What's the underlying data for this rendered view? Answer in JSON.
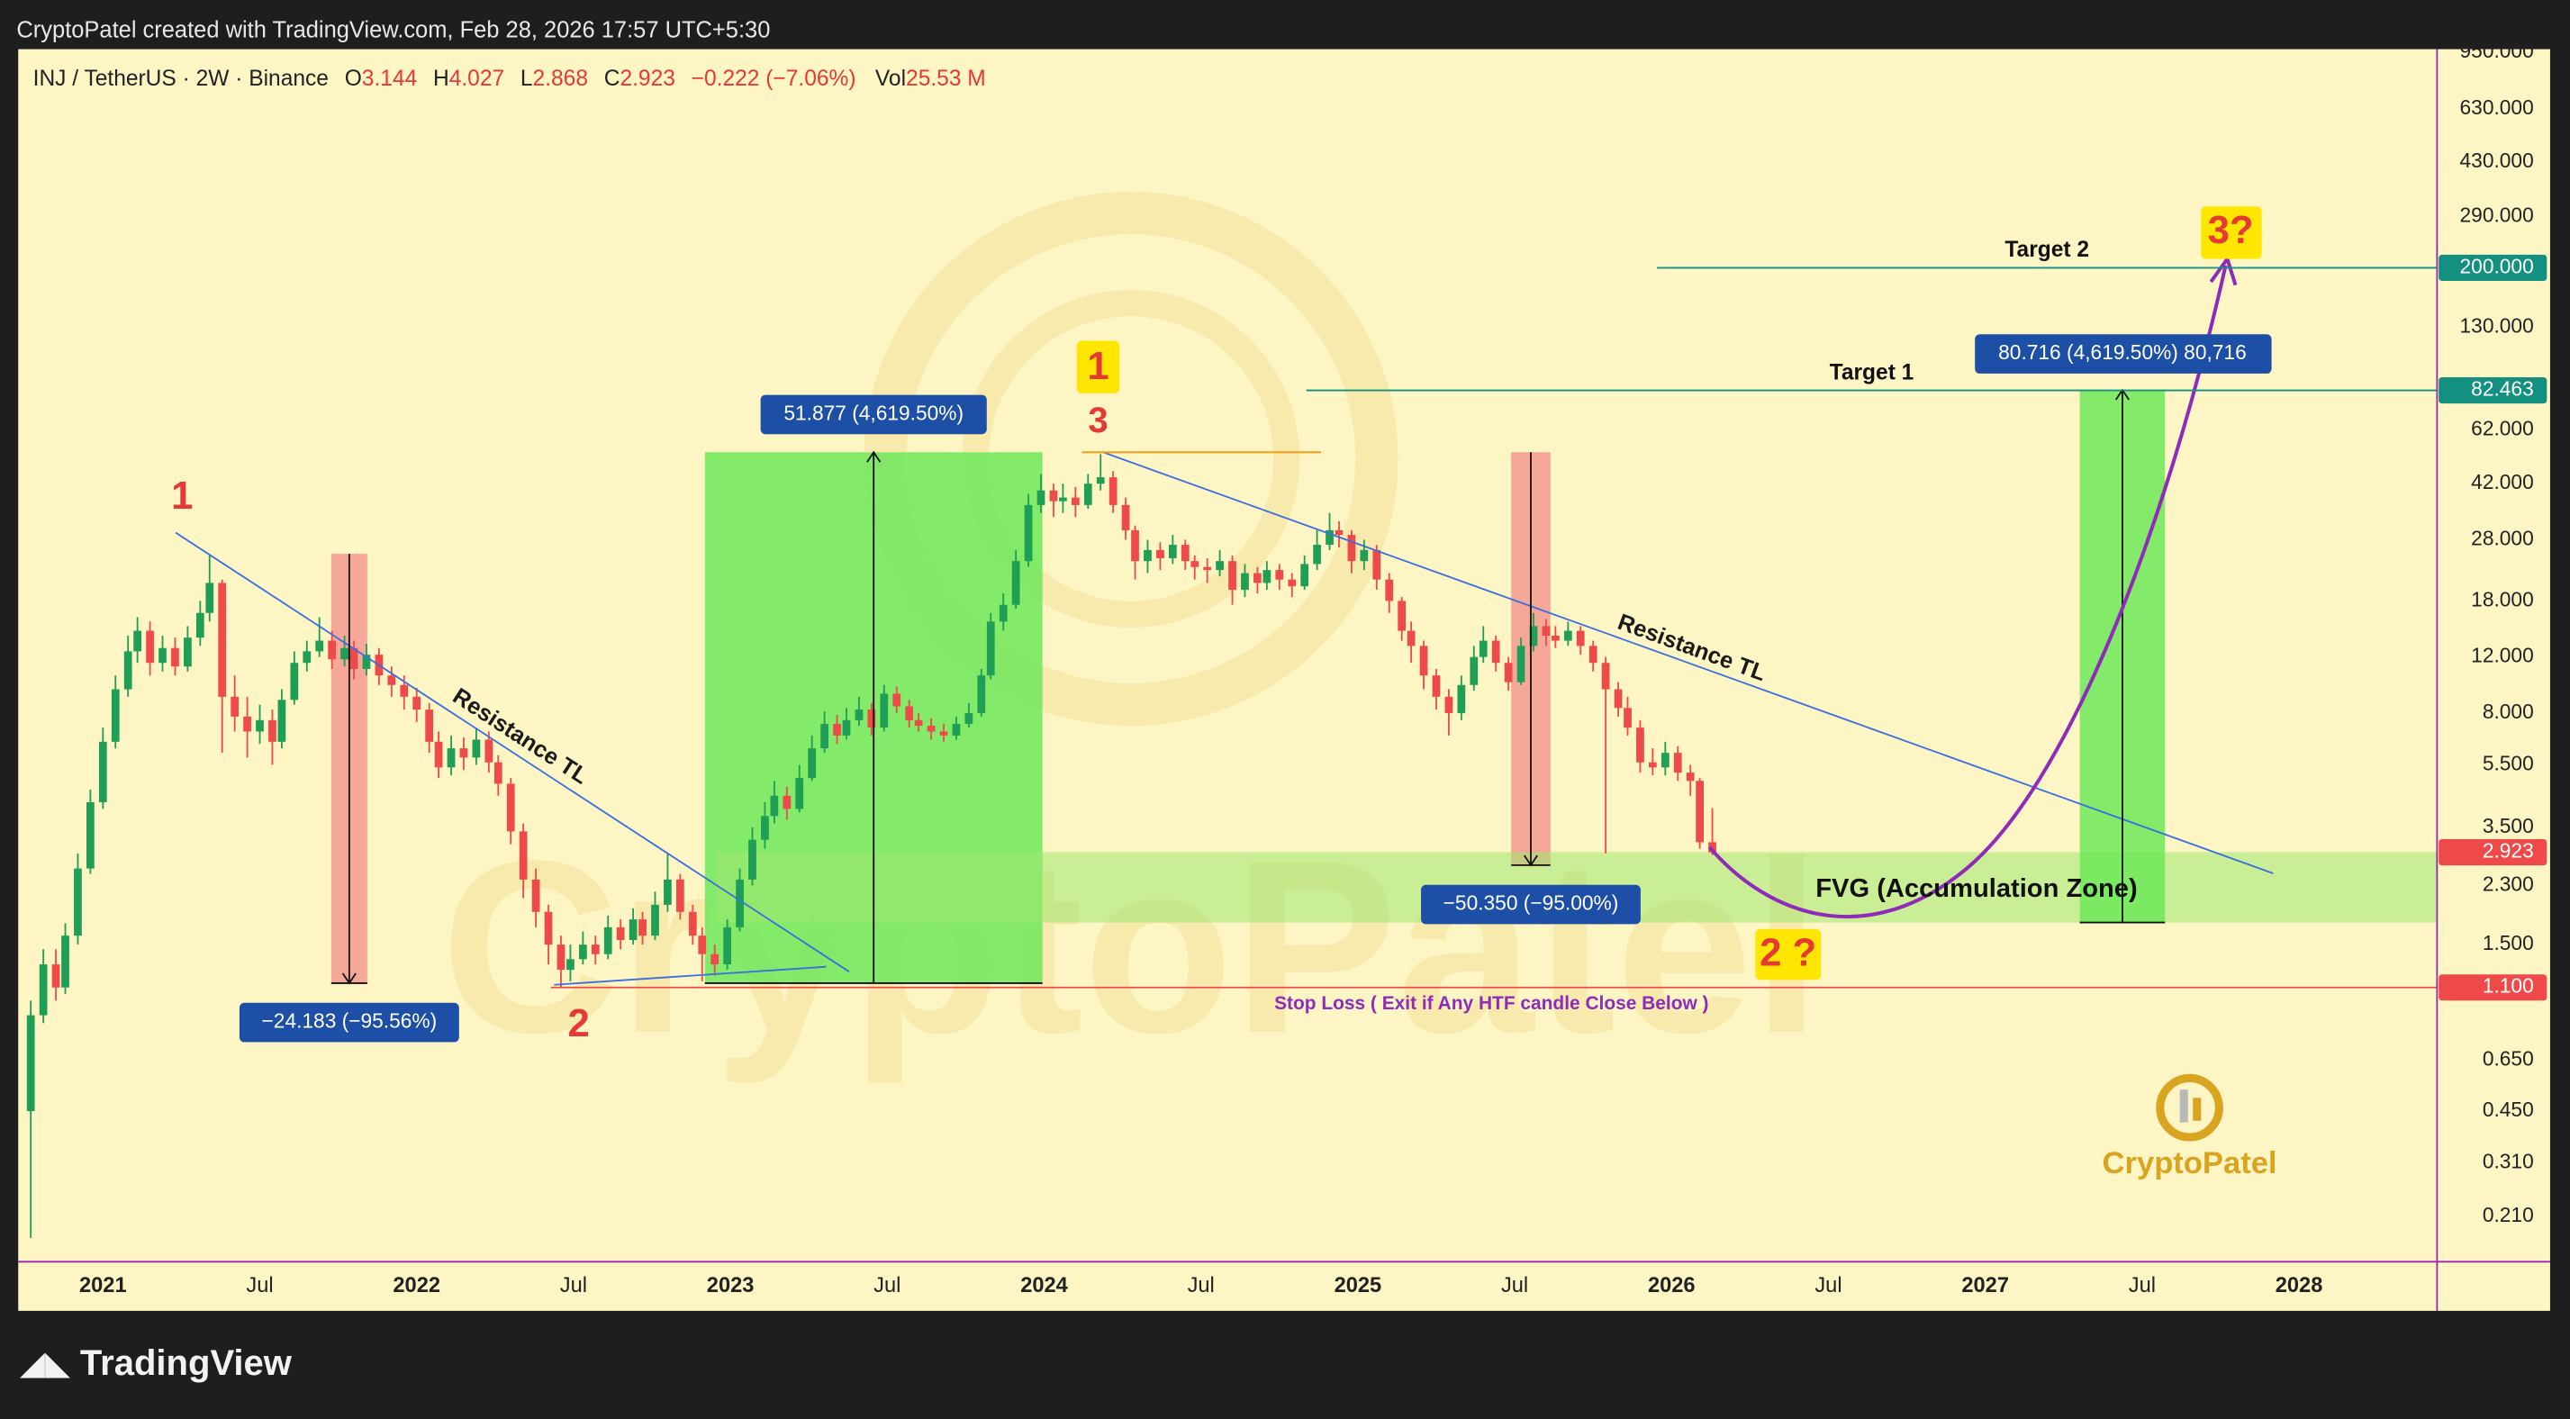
{
  "header": {
    "source": "CryptoPatel created with TradingView.com, Feb 28, 2026 17:57 UTC+5:30",
    "symbol": "INJ / TetherUS · 2W · Binance",
    "ohlc_labels": [
      "O",
      "H",
      "L",
      "C"
    ],
    "change": "−0.222 (−7.06%)",
    "volume_label": "Vol",
    "volume": "25.53 M"
  },
  "footer": {
    "brand": "TradingView",
    "logo_text": "CryptoPatel"
  },
  "chart_data": {
    "type": "candlestick",
    "log_scale": true,
    "up_color": "#1f9e55",
    "down_color": "#ef4a4a",
    "xlim": [
      2020.73,
      2028.44
    ],
    "ylim": [
      0.1515,
      972
    ],
    "xticks": [
      {
        "value": 2021,
        "label": "2021"
      },
      {
        "value": 2021.5,
        "label": "Jul"
      },
      {
        "value": 2022,
        "label": "2022"
      },
      {
        "value": 2022.5,
        "label": "Jul"
      },
      {
        "value": 2023,
        "label": "2023"
      },
      {
        "value": 2023.5,
        "label": "Jul"
      },
      {
        "value": 2024,
        "label": "2024"
      },
      {
        "value": 2024.5,
        "label": "Jul"
      },
      {
        "value": 2025,
        "label": "2025"
      },
      {
        "value": 2025.5,
        "label": "Jul"
      },
      {
        "value": 2026,
        "label": "2026"
      },
      {
        "value": 2026.5,
        "label": "Jul"
      },
      {
        "value": 2027,
        "label": "2027"
      },
      {
        "value": 2027.5,
        "label": "Jul"
      },
      {
        "value": 2028,
        "label": "2028"
      }
    ],
    "yticks": [
      {
        "value": 950,
        "label": "950.000"
      },
      {
        "value": 630,
        "label": "630.000"
      },
      {
        "value": 430,
        "label": "430.000"
      },
      {
        "value": 290,
        "label": "290.000"
      },
      {
        "value": 130,
        "label": "130.000"
      },
      {
        "value": 62,
        "label": "62.000"
      },
      {
        "value": 42,
        "label": "42.000"
      },
      {
        "value": 28,
        "label": "28.000"
      },
      {
        "value": 18,
        "label": "18.000"
      },
      {
        "value": 12,
        "label": "12.000"
      },
      {
        "value": 8,
        "label": "8.000"
      },
      {
        "value": 5.5,
        "label": "5.500"
      },
      {
        "value": 3.5,
        "label": "3.500"
      },
      {
        "value": 2.3,
        "label": "2.300"
      },
      {
        "value": 1.5,
        "label": "1.500"
      },
      {
        "value": 0.65,
        "label": "0.650"
      },
      {
        "value": 0.45,
        "label": "0.450"
      },
      {
        "value": 0.31,
        "label": "0.310"
      },
      {
        "value": 0.21,
        "label": "0.210"
      }
    ],
    "price_labels": [
      {
        "value": 200,
        "label": "200.000",
        "color": "#13907f"
      },
      {
        "value": 82.463,
        "label": "82.463",
        "color": "#13907f"
      },
      {
        "value": 2.923,
        "label": "2.923",
        "color": "#ef4a4a"
      },
      {
        "value": 1.1,
        "label": "1.100",
        "color": "#ef4a4a"
      }
    ],
    "annotations": [
      "1",
      "2",
      "1",
      "3",
      "2 ?",
      "3?",
      "Resistance TL",
      "Resistance TL",
      "−24.183 (−95.56%)",
      "51.877 (4,619.50%)",
      "−50.350 (−95.00%)",
      "80.716 (4,619.50%) 80,716",
      "FVG (Accumulation Zone)",
      "Stop Loss ( Exit if Any HTF candle Close Below )",
      "Target 1",
      "Target 2"
    ],
    "x": [
      2020.77,
      2020.81,
      2020.85,
      2020.88,
      2020.92,
      2020.96,
      2021.0,
      2021.04,
      2021.08,
      2021.11,
      2021.15,
      2021.19,
      2021.23,
      2021.27,
      2021.31,
      2021.34,
      2021.38,
      2021.42,
      2021.46,
      2021.5,
      2021.54,
      2021.57,
      2021.61,
      2021.65,
      2021.69,
      2021.73,
      2021.77,
      2021.8,
      2021.84,
      2021.88,
      2021.92,
      2021.96,
      2022.0,
      2022.04,
      2022.07,
      2022.11,
      2022.15,
      2022.19,
      2022.23,
      2022.26,
      2022.3,
      2022.34,
      2022.38,
      2022.42,
      2022.46,
      2022.49,
      2022.53,
      2022.57,
      2022.61,
      2022.65,
      2022.69,
      2022.72,
      2022.76,
      2022.8,
      2022.84,
      2022.88,
      2022.91,
      2022.95,
      2022.99,
      2023.03,
      2023.07,
      2023.11,
      2023.14,
      2023.18,
      2023.22,
      2023.26,
      2023.3,
      2023.34,
      2023.37,
      2023.41,
      2023.45,
      2023.49,
      2023.53,
      2023.57,
      2023.6,
      2023.64,
      2023.68,
      2023.72,
      2023.76,
      2023.8,
      2023.83,
      2023.87,
      2023.91,
      2023.95,
      2023.99,
      2024.03,
      2024.06,
      2024.1,
      2024.14,
      2024.18,
      2024.22,
      2024.26,
      2024.29,
      2024.33,
      2024.37,
      2024.41,
      2024.45,
      2024.48,
      2024.52,
      2024.56,
      2024.6,
      2024.64,
      2024.68,
      2024.71,
      2024.75,
      2024.79,
      2024.83,
      2024.87,
      2024.91,
      2024.94,
      2024.98,
      2025.02,
      2025.06,
      2025.1,
      2025.14,
      2025.17,
      2025.21,
      2025.25,
      2025.29,
      2025.33,
      2025.37,
      2025.4,
      2025.44,
      2025.48,
      2025.52,
      2025.56,
      2025.6,
      2025.63,
      2025.67,
      2025.71,
      2025.75,
      2025.79,
      2025.83,
      2025.86,
      2025.9,
      2025.94,
      2025.98,
      2026.02,
      2026.06,
      2026.09,
      2026.13
    ],
    "open": [
      0.45,
      0.9,
      1.3,
      1.1,
      1.6,
      2.6,
      4.2,
      6.5,
      9.5,
      12.5,
      14.5,
      11.5,
      12.8,
      11.2,
      13.8,
      16.5,
      20.5,
      9.0,
      7.8,
      7.0,
      7.6,
      6.5,
      8.8,
      11.5,
      12.5,
      13.5,
      11.8,
      12.8,
      11.0,
      12.2,
      10.5,
      9.8,
      9.0,
      8.2,
      6.5,
      5.4,
      6.2,
      5.8,
      6.6,
      5.6,
      4.8,
      3.4,
      2.4,
      1.9,
      1.5,
      1.25,
      1.35,
      1.5,
      1.4,
      1.7,
      1.55,
      1.8,
      1.6,
      2.0,
      2.4,
      1.9,
      1.6,
      1.4,
      1.3,
      1.7,
      2.4,
      3.2,
      3.8,
      4.4,
      4.0,
      5.0,
      6.2,
      7.4,
      6.8,
      7.6,
      8.2,
      7.2,
      9.2,
      8.4,
      7.6,
      7.3,
      7.0,
      6.8,
      7.4,
      8.0,
      10.5,
      15.5,
      17.5,
      24,
      36,
      40,
      37,
      38,
      36,
      42,
      44,
      36,
      30,
      24,
      26,
      24.5,
      27,
      24,
      23,
      22.5,
      24,
      19.5,
      22,
      20.5,
      22.5,
      21,
      20,
      23.5,
      27,
      30,
      29,
      24,
      26,
      21,
      18,
      14.5,
      13,
      10.5,
      9,
      8,
      9.8,
      12,
      13.5,
      11.5,
      10,
      13,
      15,
      14,
      13.5,
      14.5,
      13,
      11.5,
      9.5,
      8.3,
      7.2,
      5.6,
      5.4,
      6,
      5.2,
      4.9,
      3.144
    ],
    "high": [
      1.0,
      1.45,
      1.45,
      1.75,
      2.9,
      4.6,
      7.2,
      10.5,
      14,
      16,
      15.5,
      14,
      13.8,
      15,
      18,
      25,
      21,
      10.5,
      9,
      8.5,
      8.2,
      9.5,
      12.5,
      13.5,
      16,
      14.5,
      14,
      13.5,
      13.2,
      12.8,
      11.2,
      10.5,
      9.6,
      8.6,
      7,
      6.8,
      6.7,
      7.2,
      7,
      5.9,
      5,
      3.6,
      2.6,
      2.0,
      1.6,
      1.5,
      1.65,
      1.6,
      1.85,
      1.8,
      1.95,
      1.9,
      2.2,
      2.9,
      2.5,
      2.0,
      1.7,
      1.5,
      1.8,
      2.6,
      3.5,
      4.2,
      4.9,
      4.7,
      5.5,
      6.8,
      8.1,
      7.9,
      8.3,
      9,
      8.6,
      9.8,
      9.7,
      8.8,
      8,
      7.7,
      7.4,
      7.8,
      8.6,
      11,
      16.5,
      19,
      26,
      39,
      45,
      42,
      42,
      41,
      45,
      52,
      46,
      38,
      31,
      28,
      27.5,
      29,
      28,
      25,
      24.5,
      26,
      25,
      23.5,
      23,
      24,
      23.5,
      22,
      25,
      30,
      34,
      32,
      30,
      28,
      27,
      22,
      18.5,
      15.5,
      13.5,
      11,
      9.5,
      10.5,
      13,
      15,
      14,
      12,
      13.8,
      16.5,
      15.8,
      15,
      15.5,
      15,
      13.5,
      12,
      10,
      9,
      7.6,
      6.2,
      6.5,
      6.3,
      5.5,
      5.0,
      4.027
    ],
    "low": [
      0.18,
      0.85,
      1.0,
      1.05,
      1.5,
      2.5,
      4.0,
      6.2,
      9.0,
      11.5,
      10.5,
      10.8,
      10.5,
      10.8,
      13,
      15.5,
      6.0,
      7.0,
      5.8,
      6.4,
      5.5,
      6.2,
      8.5,
      10.8,
      12,
      11,
      11.2,
      10.2,
      10.5,
      9.8,
      9,
      8.2,
      7.5,
      6,
      5,
      5.1,
      5.3,
      5.5,
      5.2,
      4.4,
      3.1,
      2.1,
      1.7,
      1.3,
      1.1,
      1.15,
      1.3,
      1.3,
      1.35,
      1.45,
      1.5,
      1.5,
      1.55,
      1.9,
      1.8,
      1.5,
      1.15,
      1.2,
      1.25,
      1.65,
      2.3,
      3.0,
      3.6,
      3.7,
      3.9,
      4.9,
      6,
      6.4,
      6.6,
      7.3,
      6.8,
      7,
      8,
      7.2,
      7,
      6.6,
      6.5,
      6.6,
      7.2,
      7.8,
      10.2,
      14.5,
      17,
      23,
      34,
      33,
      34,
      33,
      35,
      40,
      34,
      28,
      21,
      22,
      22.5,
      23.5,
      22.5,
      21,
      20.5,
      21.5,
      17.5,
      18.5,
      19,
      19.5,
      19.5,
      18.5,
      19.5,
      22.5,
      26,
      26.5,
      22,
      22.5,
      19.5,
      16.5,
      13.5,
      11.5,
      9.5,
      8.2,
      6.8,
      7.6,
      9.4,
      11.5,
      10.8,
      9.4,
      9.8,
      12.5,
      13,
      12.8,
      13,
      12.2,
      10.8,
      2.9,
      7.8,
      6.8,
      5.2,
      5.1,
      5.1,
      4.9,
      4.4,
      3.0,
      2.868
    ],
    "close": [
      0.9,
      1.3,
      1.1,
      1.6,
      2.6,
      4.2,
      6.5,
      9.5,
      12.5,
      14.5,
      11.5,
      12.8,
      11.2,
      13.8,
      16.5,
      20.5,
      9.0,
      7.8,
      7.0,
      7.6,
      6.5,
      8.8,
      11.5,
      12.5,
      13.5,
      11.8,
      12.8,
      11.0,
      12.2,
      10.5,
      9.8,
      9.0,
      8.2,
      6.5,
      5.4,
      6.2,
      5.8,
      6.6,
      5.6,
      4.8,
      3.4,
      2.4,
      1.9,
      1.5,
      1.25,
      1.35,
      1.5,
      1.4,
      1.7,
      1.55,
      1.8,
      1.6,
      2.0,
      2.4,
      1.9,
      1.6,
      1.4,
      1.3,
      1.7,
      2.4,
      3.2,
      3.8,
      4.4,
      4.0,
      5.0,
      6.2,
      7.4,
      6.8,
      7.6,
      8.2,
      7.2,
      9.2,
      8.4,
      7.6,
      7.3,
      7.0,
      6.8,
      7.4,
      8.0,
      10.5,
      15.5,
      17.5,
      24,
      36,
      40,
      37,
      38,
      36,
      42,
      44,
      36,
      30,
      24,
      26,
      24.5,
      27,
      24,
      23,
      22.5,
      24,
      19.5,
      22,
      20.5,
      22.5,
      21,
      20,
      23.5,
      27,
      30,
      29,
      24,
      26,
      21,
      18,
      14.5,
      13,
      10.5,
      9,
      8,
      9.8,
      12,
      13.5,
      11.5,
      10,
      13,
      15,
      14,
      13.5,
      14.5,
      13,
      11.5,
      9.5,
      8.3,
      7.2,
      5.6,
      5.4,
      6,
      5.2,
      4.9,
      3.144,
      2.923
    ]
  }
}
